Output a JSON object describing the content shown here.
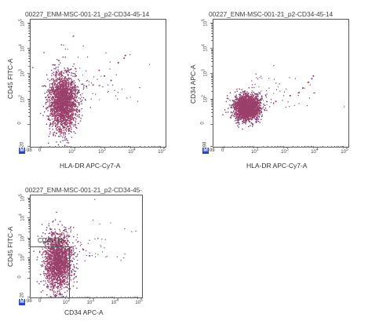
{
  "colors": {
    "main": "#9b3f6b",
    "scatter": "#7a3a78",
    "hot": "#cc3333",
    "green": "#3a9a3a",
    "badge": "#2946b8"
  },
  "chart_data": [
    {
      "type": "scatter",
      "title": "00227_ENM-MSC-001-21_p2-CD34-45-14",
      "xlabel": "HLA-DR APC-Cy7-A",
      "ylabel": "CD45 FITC-A",
      "x_ticks": [
        "-98",
        "0",
        "10^2",
        "10^3",
        "10^4",
        "10^5"
      ],
      "y_ticks": [
        "-20",
        "0",
        "10^2",
        "10^3",
        "10^4",
        "10^5"
      ],
      "badge": "M",
      "cluster": {
        "x_center": 25,
        "y_center": 70,
        "shape": "tall"
      },
      "outliers": [
        [
          500,
          400
        ],
        [
          1200,
          900
        ],
        [
          3500,
          3000
        ],
        [
          5500,
          4500
        ],
        [
          6000,
          5800
        ],
        [
          2000,
          600
        ],
        [
          800,
          1500
        ],
        [
          300,
          350
        ]
      ]
    },
    {
      "type": "scatter",
      "title": "00227_ENM-MSC-001-21_p2-CD34-45-14",
      "xlabel": "HLA-DR APC-Cy7-A",
      "ylabel": "CD34 APC-A",
      "x_ticks": [
        "-98",
        "0",
        "10^2",
        "10^3",
        "10^4",
        "10^5"
      ],
      "y_ticks": [
        "-98",
        "0",
        "10^2",
        "10^3",
        "10^4",
        "10^5"
      ],
      "badge": "M",
      "cluster": {
        "x_center": 30,
        "y_center": 25,
        "shape": "round"
      },
      "outliers": [
        [
          500,
          80
        ],
        [
          1500,
          150
        ],
        [
          4000,
          300
        ],
        [
          6000,
          500
        ],
        [
          8000,
          700
        ],
        [
          9000,
          900
        ],
        [
          3000,
          200
        ]
      ]
    },
    {
      "type": "scatter",
      "title": "00227_ENM-MSC-001-21_p2-CD34-45-14",
      "xlabel": "CD34 APC-A",
      "ylabel": "CD45 FITC-A",
      "x_ticks": [
        "-98",
        "0",
        "10^2",
        "10^3",
        "10^4",
        "10^5"
      ],
      "y_ticks": [
        "-20",
        "0",
        "10^2",
        "10^3",
        "10^4",
        "10^5"
      ],
      "badge": "M",
      "cluster": {
        "x_center": 20,
        "y_center": 60,
        "shape": "tall"
      },
      "gate": {
        "label": "CD45-34-",
        "x": [
          -98,
          200
        ],
        "y": [
          -20,
          1000
        ]
      },
      "outliers": [
        [
          500,
          300
        ],
        [
          900,
          150
        ]
      ]
    }
  ]
}
